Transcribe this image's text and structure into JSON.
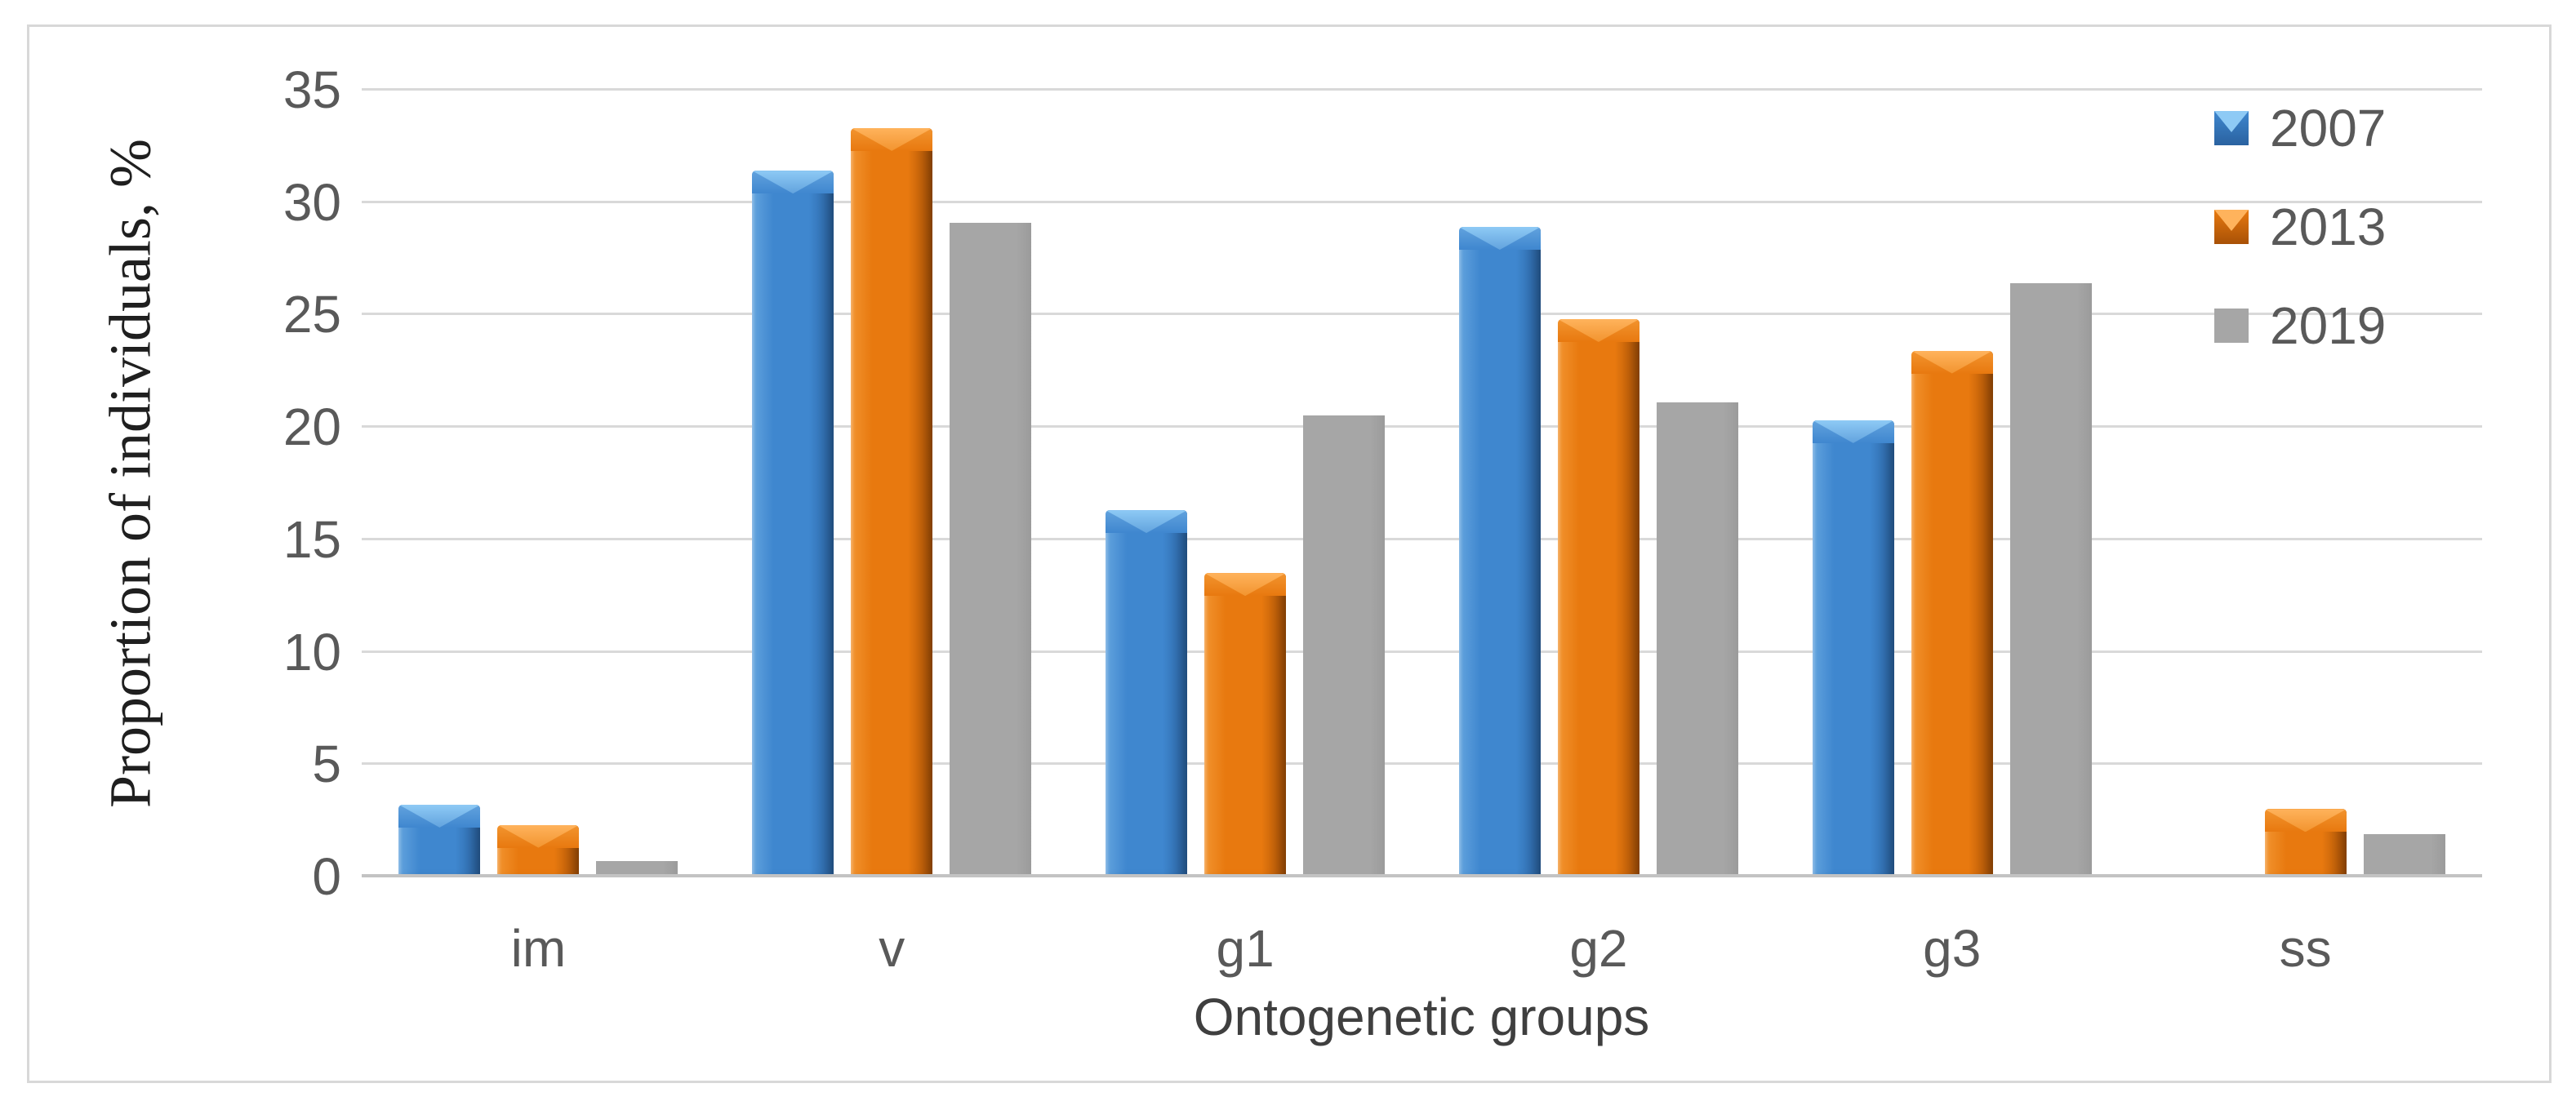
{
  "chart_data": {
    "type": "bar",
    "title": "",
    "categories": [
      "im",
      "v",
      "g1",
      "g2",
      "g3",
      "ss"
    ],
    "series": [
      {
        "name": "2007",
        "color": "#3f87cf",
        "color_light": "#62a3de",
        "color_dark": "#2a62a0",
        "highlight": "#8ecaf5",
        "bevel": true,
        "values": [
          3.2,
          31.4,
          16.3,
          28.9,
          20.3,
          0
        ]
      },
      {
        "name": "2013",
        "color": "#e8790f",
        "color_light": "#f2942f",
        "color_dark": "#a85106",
        "highlight": "#ffb35c",
        "bevel": true,
        "values": [
          2.3,
          33.3,
          13.5,
          24.8,
          23.4,
          3.0
        ]
      },
      {
        "name": "2019",
        "color": "#a6a6a6",
        "color_light": "#a6a6a6",
        "color_dark": "#9b9b9b",
        "highlight": "#a6a6a6",
        "bevel": false,
        "values": [
          0.7,
          29.1,
          20.5,
          21.1,
          26.4,
          1.9
        ]
      }
    ],
    "xlabel": "Ontogenetic groups",
    "ylabel": "Proportion of individuals, %",
    "ylim": [
      0,
      35
    ],
    "ytick_step": 5,
    "yticks": [
      0,
      5,
      10,
      15,
      20,
      25,
      30,
      35
    ],
    "grid": "horizontal",
    "gridline_color": "#d9d9d9",
    "axis_line_color": "#c3c3c3",
    "tick_label_color": "#595959",
    "legend_position": "top-right",
    "legend_items": [
      "2007",
      "2013",
      "2019"
    ]
  }
}
